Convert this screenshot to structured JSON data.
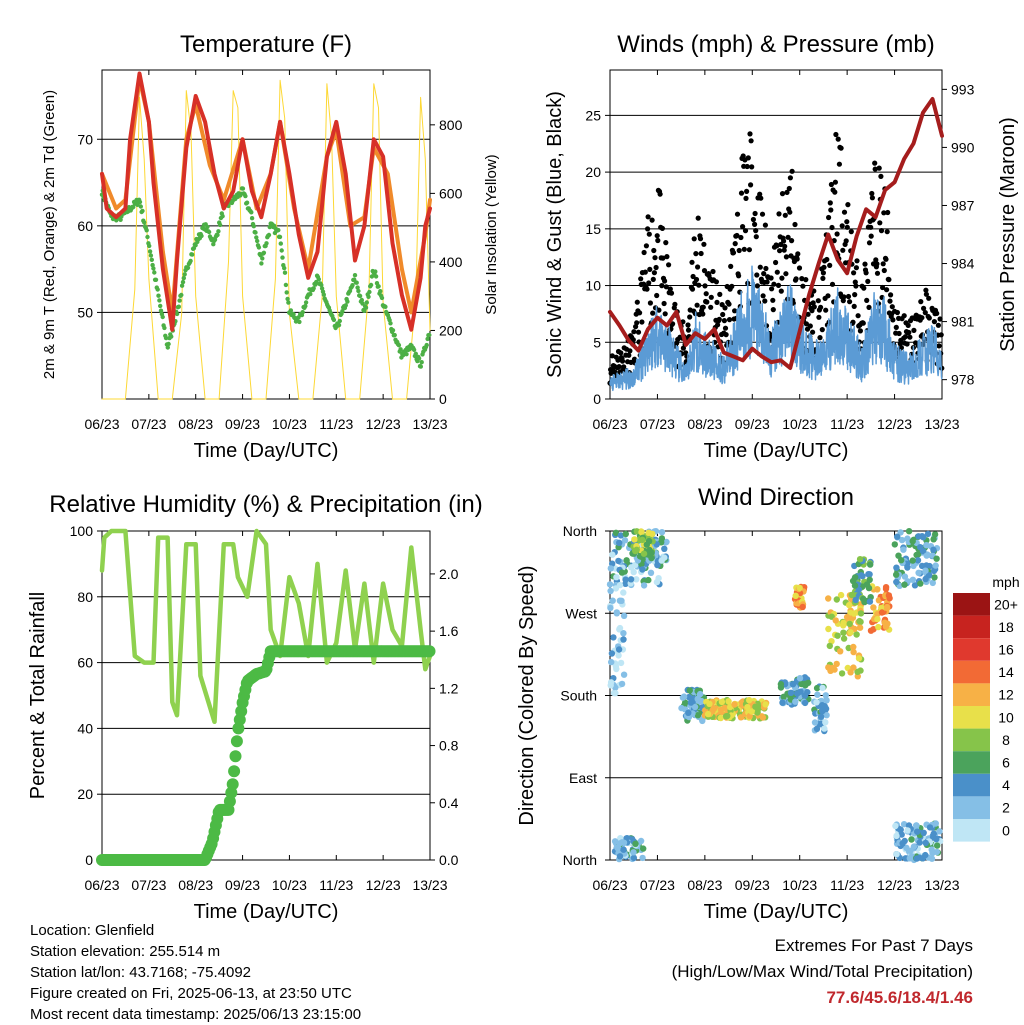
{
  "x_ticks": [
    "06/23",
    "07/23",
    "08/23",
    "09/23",
    "10/23",
    "11/23",
    "12/23",
    "13/23"
  ],
  "info": {
    "location": "Location: Glenfield",
    "elevation": "Station elevation: 255.514 m",
    "latlon": "Station lat/lon: 43.7168; -75.4092",
    "created": "Figure created on Fri, 2025-06-13, at 23:50 UTC",
    "latest": "Most recent data timestamp: 2025/06/13 23:15:00"
  },
  "extremes": {
    "title": "Extremes For Past 7 Days",
    "subtitle": "(High/Low/Max Wind/Total Precipitation)",
    "values": "77.6/45.6/18.4/1.46"
  },
  "colors": {
    "temp_2m": "#d73027",
    "temp_9m": "#f08a2a",
    "dewpoint": "#4caf45",
    "insolation": "#fdd835",
    "wind": "#5b9bd5",
    "gust": "#000000",
    "pressure": "#a51d1d",
    "rh": "#8fd14f",
    "precip": "#4cba45"
  },
  "chart_data": [
    {
      "type": "line",
      "title": "Temperature (F)",
      "xlabel": "Time (Day/UTC)",
      "ylabel": "2m & 9m T (Red, Orange) & 2m Td (Green)",
      "y2label": "Solar Insolation (Yellow)",
      "xlim": [
        6,
        13
      ],
      "ylim": [
        40,
        78
      ],
      "y2lim": [
        0,
        960
      ],
      "yticks": [
        50,
        60,
        70
      ],
      "y2ticks": [
        0,
        200,
        400,
        600,
        800
      ],
      "grid": true,
      "series": [
        {
          "key": "temp_2m",
          "x": [
            6.0,
            6.1,
            6.3,
            6.5,
            6.6,
            6.8,
            7.0,
            7.1,
            7.3,
            7.5,
            7.6,
            7.8,
            8.0,
            8.2,
            8.4,
            8.6,
            8.8,
            9.0,
            9.2,
            9.4,
            9.6,
            9.8,
            10.0,
            10.2,
            10.4,
            10.6,
            10.8,
            11.0,
            11.2,
            11.4,
            11.6,
            11.8,
            12.0,
            12.2,
            12.4,
            12.6,
            12.8,
            12.9,
            13.0
          ],
          "y": [
            66,
            62,
            61,
            62,
            70,
            77.6,
            72,
            65,
            55,
            48,
            56,
            69,
            75,
            72,
            66,
            62,
            64,
            70,
            64,
            61,
            66,
            72,
            66,
            59,
            54,
            57,
            68,
            72,
            66,
            56,
            60,
            70,
            68,
            58,
            52,
            48,
            54,
            60,
            62
          ]
        },
        {
          "key": "temp_9m",
          "x": [
            6.0,
            6.3,
            6.5,
            6.8,
            7.0,
            7.3,
            7.5,
            7.8,
            8.0,
            8.3,
            8.6,
            9.0,
            9.3,
            9.6,
            9.8,
            10.1,
            10.4,
            10.8,
            11.0,
            11.3,
            11.6,
            11.8,
            12.1,
            12.4,
            12.6,
            12.9,
            13.0
          ],
          "y": [
            66,
            62,
            63,
            77,
            72,
            57,
            50,
            70,
            74,
            67,
            63,
            70,
            62,
            66,
            72,
            62,
            55,
            68,
            71,
            60,
            61,
            69,
            66,
            55,
            50,
            59,
            63
          ]
        },
        {
          "key": "dewpoint",
          "x": [
            6.0,
            6.2,
            6.4,
            6.6,
            6.8,
            7.0,
            7.2,
            7.4,
            7.6,
            7.8,
            8.0,
            8.2,
            8.4,
            8.6,
            8.8,
            9.0,
            9.2,
            9.4,
            9.6,
            9.8,
            10.0,
            10.2,
            10.4,
            10.6,
            10.8,
            11.0,
            11.2,
            11.4,
            11.6,
            11.8,
            12.0,
            12.2,
            12.4,
            12.6,
            12.8,
            13.0
          ],
          "y": [
            64,
            61,
            61,
            62,
            63,
            58,
            52,
            46,
            50,
            55,
            58,
            60,
            58,
            62,
            63,
            64,
            61,
            56,
            60,
            59,
            50,
            49,
            52,
            54,
            51,
            48,
            51,
            54,
            50,
            55,
            51,
            48,
            45,
            46,
            44,
            48
          ]
        },
        {
          "key": "insolation",
          "axis": "y2",
          "x": [
            6.0,
            6.3,
            6.5,
            6.7,
            6.8,
            6.9,
            7.0,
            7.2,
            7.5,
            7.7,
            7.8,
            7.9,
            8.0,
            8.2,
            8.5,
            8.7,
            8.8,
            8.9,
            9.0,
            9.2,
            9.5,
            9.7,
            9.8,
            9.9,
            10.0,
            10.2,
            10.5,
            10.7,
            10.8,
            10.9,
            11.0,
            11.2,
            11.5,
            11.7,
            11.8,
            11.9,
            12.0,
            12.2,
            12.5,
            12.7,
            12.8,
            12.9,
            13.0
          ],
          "y": [
            0,
            0,
            0,
            320,
            880,
            700,
            350,
            0,
            0,
            250,
            900,
            780,
            300,
            0,
            0,
            400,
            900,
            850,
            300,
            0,
            0,
            350,
            930,
            820,
            250,
            0,
            0,
            300,
            920,
            760,
            300,
            0,
            0,
            330,
            920,
            850,
            280,
            0,
            0,
            300,
            880,
            700,
            200
          ]
        }
      ]
    },
    {
      "type": "scatter",
      "title": "Winds (mph) & Pressure (mb)",
      "xlabel": "Time (Day/UTC)",
      "ylabel": "Sonic Wind & Gust (Blue, Black)",
      "y2label": "Station Pressure (Maroon)",
      "xlim": [
        6,
        13
      ],
      "ylim": [
        0,
        29
      ],
      "y2lim": [
        977,
        994
      ],
      "yticks": [
        0,
        5,
        10,
        15,
        20,
        25
      ],
      "y2ticks": [
        978,
        981,
        984,
        987,
        990,
        993
      ],
      "grid": true,
      "wind_envelope": {
        "x": [
          6.0,
          6.5,
          6.8,
          7.0,
          7.3,
          7.6,
          7.8,
          8.0,
          8.4,
          8.8,
          9.0,
          9.4,
          9.8,
          10.0,
          10.4,
          10.8,
          11.0,
          11.3,
          11.6,
          11.8,
          12.0,
          12.3,
          12.6,
          12.8,
          13.0
        ],
        "y": [
          2,
          3,
          7,
          9,
          6,
          3,
          8,
          6,
          4,
          10,
          12,
          6,
          11,
          7,
          5,
          10,
          8,
          5,
          10,
          9,
          5,
          4,
          6,
          7,
          4
        ]
      },
      "gust_envelope": {
        "x": [
          6.0,
          6.5,
          6.8,
          7.0,
          7.3,
          7.6,
          7.8,
          8.0,
          8.4,
          8.8,
          9.0,
          9.4,
          9.8,
          10.0,
          10.4,
          10.8,
          11.0,
          11.3,
          11.6,
          11.8,
          12.0,
          12.3,
          12.6,
          12.8,
          13.0
        ],
        "y": [
          4,
          6,
          16,
          20,
          10,
          6,
          18,
          14,
          8,
          22,
          24,
          12,
          23,
          12,
          9,
          25,
          18,
          10,
          22,
          20,
          9,
          7,
          10,
          9,
          7
        ]
      },
      "series": [
        {
          "key": "pressure",
          "axis": "y2",
          "x": [
            6.0,
            6.2,
            6.4,
            6.6,
            6.8,
            7.0,
            7.2,
            7.4,
            7.6,
            7.8,
            8.0,
            8.2,
            8.4,
            8.6,
            8.8,
            9.0,
            9.2,
            9.4,
            9.6,
            9.8,
            10.0,
            10.2,
            10.4,
            10.6,
            10.8,
            11.0,
            11.2,
            11.4,
            11.6,
            11.8,
            12.0,
            12.2,
            12.4,
            12.6,
            12.8,
            13.0
          ],
          "y": [
            981.5,
            980.8,
            980,
            979.5,
            980.6,
            981.2,
            980.8,
            981.5,
            979.8,
            980.4,
            980.1,
            980.6,
            979.4,
            979.2,
            979,
            979.6,
            979.2,
            978.9,
            979,
            978.6,
            980.5,
            982.4,
            984,
            985.5,
            984.2,
            983.5,
            985.4,
            986.8,
            986.4,
            987.8,
            988.2,
            989.4,
            990.2,
            991.8,
            992.5,
            990.6
          ]
        }
      ]
    },
    {
      "type": "line",
      "title": "Relative Humidity (%) & Precipitation (in)",
      "xlabel": "Time (Day/UTC)",
      "ylabel": "Percent & Total Rainfall",
      "xlim": [
        6,
        13
      ],
      "ylim": [
        0,
        100
      ],
      "y2lim": [
        0,
        2.3
      ],
      "yticks": [
        0,
        20,
        40,
        60,
        80,
        100
      ],
      "y2ticks": [
        0.0,
        0.4,
        0.8,
        1.2,
        1.6,
        2.0
      ],
      "grid": true,
      "series": [
        {
          "key": "rh",
          "x": [
            6.0,
            6.05,
            6.2,
            6.5,
            6.7,
            6.9,
            7.1,
            7.2,
            7.4,
            7.5,
            7.6,
            7.8,
            8.0,
            8.1,
            8.4,
            8.6,
            8.8,
            8.9,
            9.1,
            9.3,
            9.5,
            9.6,
            9.8,
            10.0,
            10.2,
            10.4,
            10.6,
            10.8,
            11.0,
            11.2,
            11.4,
            11.6,
            11.8,
            12.0,
            12.2,
            12.4,
            12.6,
            12.8,
            12.9,
            13.0
          ],
          "y": [
            88,
            98,
            100,
            100,
            62,
            60,
            60,
            98,
            98,
            48,
            44,
            96,
            96,
            56,
            42,
            96,
            96,
            86,
            80,
            100,
            96,
            70,
            62,
            86,
            78,
            62,
            90,
            60,
            66,
            88,
            64,
            84,
            60,
            84,
            70,
            65,
            95,
            70,
            58,
            62
          ]
        },
        {
          "key": "precip",
          "axis": "y2",
          "x": [
            6.0,
            8.2,
            8.35,
            8.5,
            8.7,
            8.8,
            8.9,
            9.0,
            9.1,
            9.3,
            9.5,
            9.6,
            13.0
          ],
          "y": [
            0.0,
            0.0,
            0.12,
            0.35,
            0.35,
            0.55,
            0.9,
            1.1,
            1.25,
            1.3,
            1.32,
            1.46,
            1.46
          ]
        }
      ]
    },
    {
      "type": "scatter",
      "title": "Wind Direction",
      "xlabel": "Time (Day/UTC)",
      "ylabel": "Direction (Colored By Speed)",
      "xlim": [
        6,
        13
      ],
      "ycategories": [
        "North",
        "East",
        "South",
        "West",
        "North"
      ],
      "grid": true,
      "clusters": [
        {
          "x": [
            6.0,
            7.2
          ],
          "y": [
            300,
            360
          ],
          "speed": 3
        },
        {
          "x": [
            6.5,
            6.9
          ],
          "y": [
            330,
            360
          ],
          "speed": 8
        },
        {
          "x": [
            6.0,
            6.3
          ],
          "y": [
            180,
            300
          ],
          "speed": 1
        },
        {
          "x": [
            6.1,
            6.7
          ],
          "y": [
            0,
            25
          ],
          "speed": 3
        },
        {
          "x": [
            7.5,
            8.0
          ],
          "y": [
            150,
            190
          ],
          "speed": 4
        },
        {
          "x": [
            8.0,
            9.3
          ],
          "y": [
            155,
            175
          ],
          "speed": 10
        },
        {
          "x": [
            9.6,
            10.2
          ],
          "y": [
            170,
            200
          ],
          "speed": 4
        },
        {
          "x": [
            9.9,
            10.1
          ],
          "y": [
            275,
            300
          ],
          "speed": 12
        },
        {
          "x": [
            10.6,
            11.3
          ],
          "y": [
            200,
            290
          ],
          "speed": 10
        },
        {
          "x": [
            10.3,
            10.6
          ],
          "y": [
            140,
            190
          ],
          "speed": 3
        },
        {
          "x": [
            11.5,
            11.9
          ],
          "y": [
            250,
            300
          ],
          "speed": 12
        },
        {
          "x": [
            11.1,
            11.5
          ],
          "y": [
            280,
            330
          ],
          "speed": 6
        },
        {
          "x": [
            12.0,
            12.9
          ],
          "y": [
            300,
            360
          ],
          "speed": 4
        },
        {
          "x": [
            12.0,
            13.0
          ],
          "y": [
            0,
            40
          ],
          "speed": 3
        }
      ],
      "colorbar": {
        "label": "mph",
        "labels": [
          "0",
          "2",
          "4",
          "6",
          "8",
          "10",
          "12",
          "14",
          "16",
          "18",
          "20+"
        ],
        "colors": [
          "#bfe6f5",
          "#85bfe6",
          "#4a90c9",
          "#4ba35c",
          "#86c44a",
          "#e8e04a",
          "#f7b146",
          "#f26a35",
          "#e0392e",
          "#c7231f",
          "#9b1414"
        ]
      }
    }
  ]
}
